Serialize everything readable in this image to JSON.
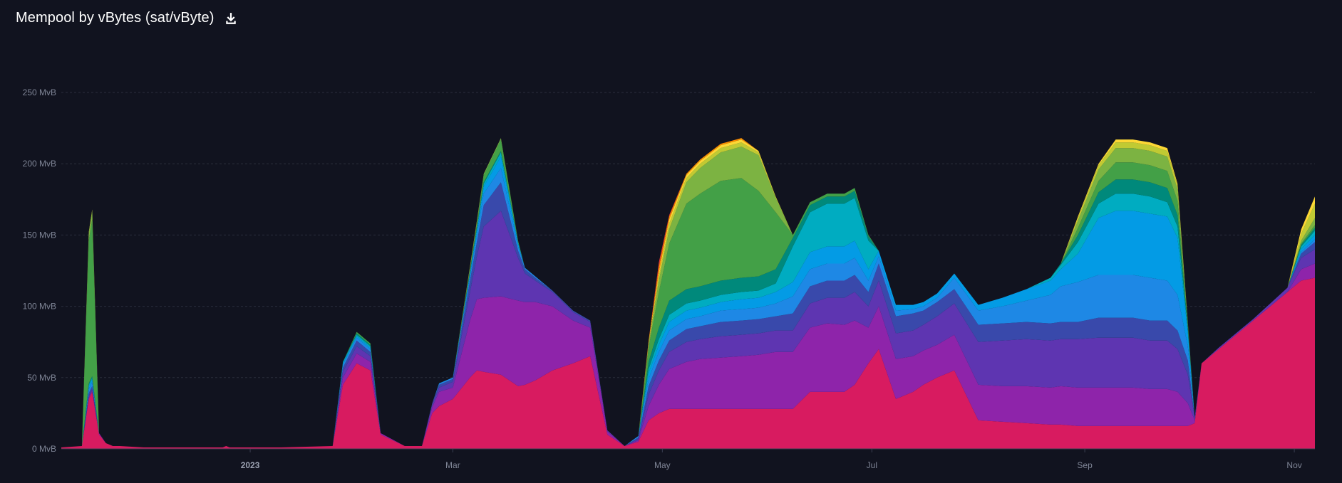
{
  "header": {
    "title": "Mempool by vBytes (sat/vByte)",
    "download_icon": "download-icon"
  },
  "chart_data": {
    "type": "area",
    "stacked": true,
    "title": "Mempool by vBytes (sat/vByte)",
    "ylabel": "",
    "ylim": [
      0,
      250
    ],
    "y_unit": "MvB",
    "y_ticks": [
      "0 MvB",
      "50 MvB",
      "100 MvB",
      "150 MvB",
      "200 MvB",
      "250 MvB"
    ],
    "y_tick_values": [
      0,
      50,
      100,
      150,
      200,
      250
    ],
    "x_ticks": [
      {
        "label": "2023",
        "x": "2023-01-01",
        "bold": true
      },
      {
        "label": "Mar",
        "x": "2023-03-01",
        "bold": false
      },
      {
        "label": "May",
        "x": "2023-05-01",
        "bold": false
      },
      {
        "label": "Jul",
        "x": "2023-07-01",
        "bold": false
      },
      {
        "label": "Sep",
        "x": "2023-09-01",
        "bold": false
      },
      {
        "label": "Nov",
        "x": "2023-11-01",
        "bold": false
      }
    ],
    "xlim": [
      "2022-11-07",
      "2023-11-07"
    ],
    "grid": true,
    "legend": "none",
    "x": [
      "2022-11-07",
      "2022-11-13",
      "2022-11-15",
      "2022-11-16",
      "2022-11-18",
      "2022-11-20",
      "2022-11-22",
      "2022-11-24",
      "2022-12-01",
      "2022-12-15",
      "2022-12-24",
      "2022-12-25",
      "2022-12-26",
      "2023-01-10",
      "2023-01-25",
      "2023-01-28",
      "2023-02-01",
      "2023-02-05",
      "2023-02-08",
      "2023-02-15",
      "2023-02-20",
      "2023-02-23",
      "2023-02-25",
      "2023-03-01",
      "2023-03-06",
      "2023-03-08",
      "2023-03-10",
      "2023-03-15",
      "2023-03-20",
      "2023-03-22",
      "2023-03-25",
      "2023-03-30",
      "2023-04-05",
      "2023-04-10",
      "2023-04-15",
      "2023-04-20",
      "2023-04-24",
      "2023-04-27",
      "2023-04-30",
      "2023-05-03",
      "2023-05-08",
      "2023-05-12",
      "2023-05-18",
      "2023-05-24",
      "2023-05-29",
      "2023-06-03",
      "2023-06-08",
      "2023-06-13",
      "2023-06-18",
      "2023-06-23",
      "2023-06-26",
      "2023-06-30",
      "2023-07-03",
      "2023-07-08",
      "2023-07-13",
      "2023-07-16",
      "2023-07-20",
      "2023-07-25",
      "2023-08-01",
      "2023-08-08",
      "2023-08-15",
      "2023-08-22",
      "2023-08-25",
      "2023-08-30",
      "2023-09-05",
      "2023-09-10",
      "2023-09-15",
      "2023-09-20",
      "2023-09-25",
      "2023-09-28",
      "2023-10-01",
      "2023-10-03",
      "2023-10-05",
      "2023-10-10",
      "2023-10-15",
      "2023-10-20",
      "2023-10-25",
      "2023-10-30",
      "2023-11-03",
      "2023-11-07"
    ],
    "series": [
      {
        "color": "#d81b60",
        "values": [
          1,
          2,
          35,
          40,
          10,
          4,
          2,
          2,
          1,
          1,
          1,
          2,
          1,
          1,
          2,
          45,
          60,
          55,
          10,
          2,
          2,
          25,
          30,
          35,
          50,
          55,
          54,
          52,
          44,
          45,
          48,
          55,
          60,
          65,
          10,
          2,
          5,
          20,
          25,
          28,
          28,
          28,
          28,
          28,
          28,
          28,
          28,
          40,
          40,
          40,
          45,
          60,
          70,
          35,
          40,
          45,
          50,
          55,
          20,
          19,
          18,
          17,
          17,
          16,
          16,
          16,
          16,
          16,
          16,
          16,
          16,
          18,
          60,
          70,
          80,
          90,
          100,
          110,
          118,
          120
        ]
      },
      {
        "color": "#8e24aa",
        "values": [
          0,
          0,
          1,
          1,
          1,
          0,
          0,
          0,
          0,
          0,
          0,
          0,
          0,
          0,
          0,
          5,
          7,
          6,
          1,
          0,
          0,
          4,
          10,
          8,
          40,
          50,
          52,
          55,
          60,
          58,
          55,
          45,
          30,
          20,
          2,
          0,
          1,
          10,
          20,
          28,
          33,
          35,
          36,
          37,
          38,
          40,
          40,
          45,
          48,
          47,
          45,
          25,
          30,
          28,
          25,
          24,
          23,
          25,
          25,
          25,
          26,
          26,
          27,
          27,
          27,
          27,
          27,
          26,
          26,
          24,
          16,
          2,
          0,
          0,
          0,
          0,
          0,
          0,
          8,
          10
        ]
      },
      {
        "color": "#5e35b1",
        "values": [
          0,
          0,
          1,
          1,
          0,
          0,
          0,
          0,
          0,
          0,
          0,
          0,
          0,
          0,
          0,
          4,
          5,
          4,
          0,
          0,
          0,
          2,
          3,
          4,
          20,
          30,
          50,
          60,
          30,
          20,
          15,
          10,
          6,
          4,
          1,
          0,
          1,
          8,
          10,
          12,
          14,
          14,
          15,
          15,
          15,
          15,
          15,
          17,
          18,
          19,
          20,
          15,
          18,
          18,
          18,
          18,
          20,
          22,
          30,
          32,
          33,
          33,
          33,
          34,
          35,
          35,
          35,
          34,
          34,
          30,
          20,
          2,
          0,
          1,
          1,
          1,
          2,
          3,
          8,
          10
        ]
      },
      {
        "color": "#3949ab",
        "values": [
          0,
          0,
          2,
          2,
          0,
          0,
          0,
          0,
          0,
          0,
          0,
          0,
          0,
          0,
          0,
          3,
          4,
          3,
          0,
          0,
          0,
          1,
          2,
          2,
          8,
          10,
          15,
          20,
          5,
          3,
          2,
          1,
          1,
          1,
          0,
          0,
          1,
          6,
          7,
          8,
          9,
          9,
          10,
          10,
          10,
          10,
          12,
          12,
          12,
          12,
          12,
          10,
          12,
          12,
          12,
          10,
          10,
          10,
          12,
          12,
          12,
          12,
          12,
          12,
          14,
          14,
          14,
          14,
          14,
          13,
          10,
          0,
          0,
          0,
          0,
          0,
          0,
          0,
          3,
          5
        ]
      },
      {
        "color": "#1e88e5",
        "values": [
          0,
          0,
          3,
          3,
          0,
          0,
          0,
          0,
          0,
          0,
          0,
          0,
          0,
          0,
          0,
          2,
          2,
          2,
          0,
          0,
          0,
          0,
          1,
          1,
          3,
          5,
          8,
          10,
          3,
          1,
          1,
          0,
          0,
          0,
          0,
          0,
          1,
          5,
          6,
          7,
          7,
          7,
          8,
          8,
          8,
          9,
          12,
          12,
          12,
          12,
          12,
          8,
          5,
          4,
          3,
          3,
          3,
          8,
          10,
          12,
          15,
          20,
          25,
          28,
          30,
          30,
          30,
          30,
          28,
          25,
          10,
          0,
          0,
          0,
          0,
          0,
          0,
          0,
          1,
          2
        ]
      },
      {
        "color": "#039be5",
        "values": [
          0,
          0,
          2,
          2,
          0,
          0,
          0,
          0,
          0,
          0,
          0,
          0,
          0,
          0,
          0,
          1,
          1,
          1,
          0,
          0,
          0,
          0,
          0,
          0,
          2,
          3,
          5,
          8,
          2,
          0,
          0,
          0,
          0,
          0,
          0,
          0,
          0,
          4,
          5,
          6,
          6,
          6,
          6,
          7,
          7,
          8,
          10,
          12,
          12,
          12,
          12,
          8,
          4,
          4,
          3,
          3,
          3,
          3,
          4,
          6,
          8,
          10,
          12,
          20,
          40,
          45,
          45,
          45,
          45,
          40,
          10,
          0,
          0,
          0,
          0,
          0,
          0,
          0,
          2,
          3
        ]
      },
      {
        "color": "#00acc1",
        "values": [
          0,
          0,
          1,
          1,
          0,
          0,
          0,
          0,
          0,
          0,
          0,
          0,
          0,
          0,
          0,
          1,
          1,
          1,
          0,
          0,
          0,
          0,
          0,
          0,
          1,
          2,
          2,
          3,
          1,
          0,
          0,
          0,
          0,
          0,
          0,
          0,
          0,
          3,
          4,
          5,
          5,
          5,
          5,
          5,
          5,
          6,
          25,
          28,
          30,
          30,
          30,
          20,
          0,
          0,
          0,
          0,
          0,
          0,
          0,
          0,
          0,
          2,
          3,
          8,
          10,
          12,
          12,
          12,
          10,
          8,
          2,
          0,
          0,
          0,
          0,
          0,
          0,
          0,
          2,
          3
        ]
      },
      {
        "color": "#00897b",
        "values": [
          0,
          0,
          1,
          1,
          0,
          0,
          0,
          0,
          0,
          0,
          0,
          0,
          0,
          0,
          0,
          0,
          1,
          1,
          0,
          0,
          0,
          0,
          0,
          0,
          1,
          1,
          1,
          1,
          0,
          0,
          0,
          0,
          0,
          0,
          0,
          0,
          0,
          5,
          8,
          10,
          10,
          10,
          10,
          10,
          10,
          10,
          6,
          5,
          5,
          5,
          5,
          3,
          0,
          0,
          0,
          0,
          0,
          0,
          0,
          0,
          0,
          0,
          1,
          5,
          8,
          10,
          10,
          10,
          10,
          8,
          2,
          0,
          0,
          0,
          0,
          0,
          0,
          0,
          1,
          2
        ]
      },
      {
        "color": "#43a047",
        "values": [
          0,
          0,
          100,
          110,
          0,
          0,
          0,
          0,
          0,
          0,
          0,
          0,
          0,
          0,
          0,
          0,
          1,
          1,
          0,
          0,
          0,
          0,
          0,
          0,
          1,
          2,
          5,
          8,
          1,
          0,
          0,
          0,
          0,
          0,
          0,
          0,
          0,
          10,
          25,
          40,
          60,
          65,
          70,
          70,
          60,
          40,
          2,
          2,
          2,
          2,
          2,
          1,
          0,
          0,
          0,
          0,
          0,
          0,
          0,
          0,
          0,
          0,
          0,
          5,
          8,
          12,
          12,
          12,
          12,
          10,
          2,
          0,
          0,
          0,
          0,
          0,
          0,
          0,
          1,
          2
        ]
      },
      {
        "color": "#7cb342",
        "values": [
          0,
          0,
          5,
          6,
          0,
          0,
          0,
          0,
          0,
          0,
          0,
          0,
          0,
          0,
          0,
          0,
          0,
          0,
          0,
          0,
          0,
          0,
          0,
          0,
          1,
          1,
          1,
          1,
          0,
          0,
          0,
          0,
          0,
          0,
          0,
          0,
          0,
          2,
          8,
          10,
          15,
          18,
          20,
          22,
          25,
          10,
          0,
          0,
          0,
          0,
          0,
          0,
          0,
          0,
          0,
          0,
          0,
          0,
          0,
          0,
          0,
          0,
          0,
          5,
          8,
          10,
          10,
          10,
          10,
          8,
          1,
          0,
          0,
          0,
          0,
          0,
          0,
          0,
          2,
          5
        ]
      },
      {
        "color": "#c0ca33",
        "values": [
          0,
          0,
          1,
          1,
          0,
          0,
          0,
          0,
          0,
          0,
          0,
          0,
          0,
          0,
          0,
          0,
          0,
          0,
          0,
          0,
          0,
          0,
          0,
          0,
          1,
          1,
          0,
          0,
          0,
          0,
          0,
          0,
          0,
          0,
          0,
          0,
          0,
          1,
          3,
          4,
          3,
          3,
          3,
          3,
          2,
          1,
          0,
          0,
          0,
          0,
          0,
          0,
          0,
          0,
          0,
          0,
          0,
          0,
          0,
          0,
          0,
          0,
          0,
          2,
          3,
          4,
          4,
          4,
          4,
          3,
          0,
          0,
          0,
          0,
          0,
          0,
          0,
          0,
          5,
          10
        ]
      },
      {
        "color": "#fdd835",
        "values": [
          0,
          0,
          0,
          0,
          0,
          0,
          0,
          0,
          0,
          0,
          0,
          0,
          0,
          0,
          0,
          0,
          0,
          0,
          0,
          0,
          0,
          0,
          0,
          0,
          0,
          0,
          0,
          0,
          0,
          0,
          0,
          0,
          0,
          0,
          0,
          0,
          0,
          1,
          3,
          3,
          2,
          2,
          2,
          2,
          1,
          0,
          0,
          0,
          0,
          0,
          0,
          0,
          0,
          0,
          0,
          0,
          0,
          0,
          0,
          0,
          0,
          0,
          0,
          1,
          1,
          2,
          2,
          2,
          2,
          1,
          0,
          0,
          0,
          0,
          0,
          0,
          0,
          0,
          3,
          5
        ]
      },
      {
        "color": "#fb8c00",
        "values": [
          0,
          0,
          0,
          0,
          0,
          0,
          0,
          0,
          0,
          0,
          0,
          0,
          0,
          0,
          0,
          0,
          0,
          0,
          0,
          0,
          0,
          0,
          0,
          0,
          0,
          0,
          0,
          0,
          0,
          0,
          0,
          0,
          0,
          0,
          0,
          0,
          0,
          1,
          4,
          2,
          1,
          1,
          1,
          1,
          0,
          0,
          0,
          0,
          0,
          0,
          0,
          0,
          0,
          0,
          0,
          0,
          0,
          0,
          0,
          0,
          0,
          0,
          0,
          0,
          0,
          0,
          0,
          0,
          0,
          0,
          0,
          0,
          0,
          0,
          0,
          0,
          0,
          0,
          0,
          0
        ]
      },
      {
        "color": "#e53935",
        "values": [
          0,
          0,
          0,
          0,
          0,
          0,
          0,
          0,
          0,
          0,
          0,
          0,
          0,
          0,
          0,
          0,
          0,
          0,
          0,
          0,
          0,
          0,
          0,
          0,
          0,
          0,
          0,
          0,
          0,
          0,
          0,
          0,
          0,
          0,
          0,
          0,
          0,
          0,
          3,
          1,
          0,
          0,
          0,
          0,
          0,
          0,
          0,
          0,
          0,
          0,
          0,
          0,
          0,
          0,
          0,
          0,
          0,
          0,
          0,
          0,
          0,
          0,
          0,
          0,
          0,
          0,
          0,
          0,
          0,
          0,
          0,
          0,
          0,
          0,
          0,
          0,
          0,
          0,
          0,
          0
        ]
      }
    ]
  }
}
